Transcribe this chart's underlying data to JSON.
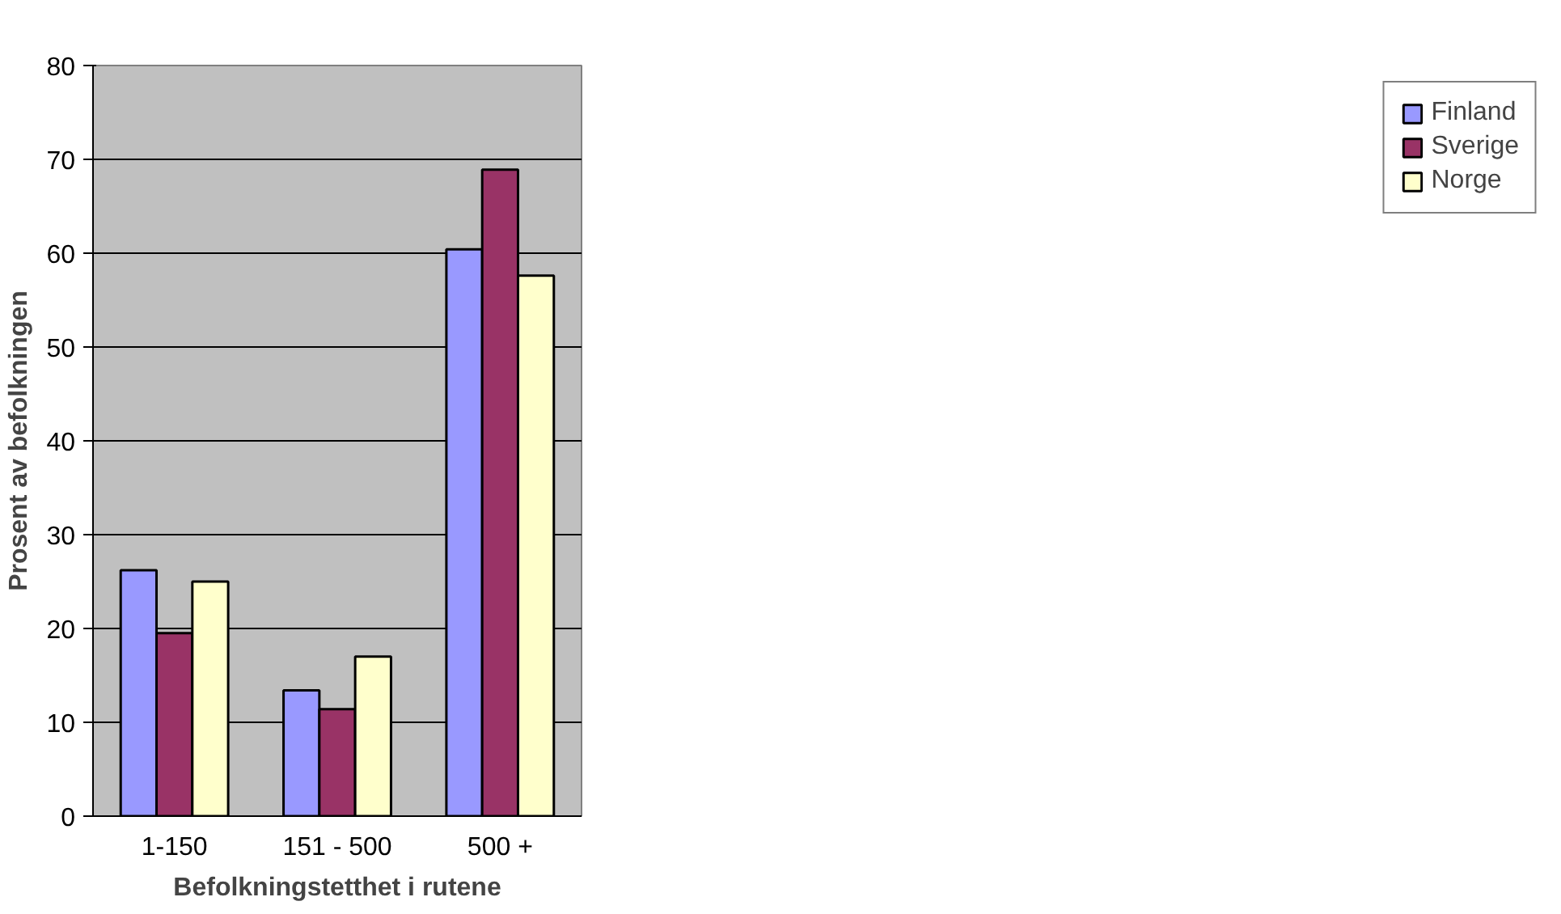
{
  "chart_data": {
    "type": "bar",
    "xlabel": "Befolkningstetthet i rutene",
    "ylabel": "Prosent av befolkningen",
    "categories": [
      "1-150",
      "151 - 500",
      "500 +"
    ],
    "series": [
      {
        "name": "Finland",
        "color": "#9999ff",
        "values": [
          26.2,
          13.4,
          60.4
        ]
      },
      {
        "name": "Sverige",
        "color": "#993366",
        "values": [
          19.5,
          11.4,
          68.9
        ]
      },
      {
        "name": "Norge",
        "color": "#ffffcc",
        "values": [
          25.0,
          17.0,
          57.6
        ]
      }
    ],
    "ylim": [
      0,
      80
    ],
    "yticks": [
      0,
      10,
      20,
      30,
      40,
      50,
      60,
      70,
      80
    ],
    "grid": "y",
    "legend": "right"
  }
}
